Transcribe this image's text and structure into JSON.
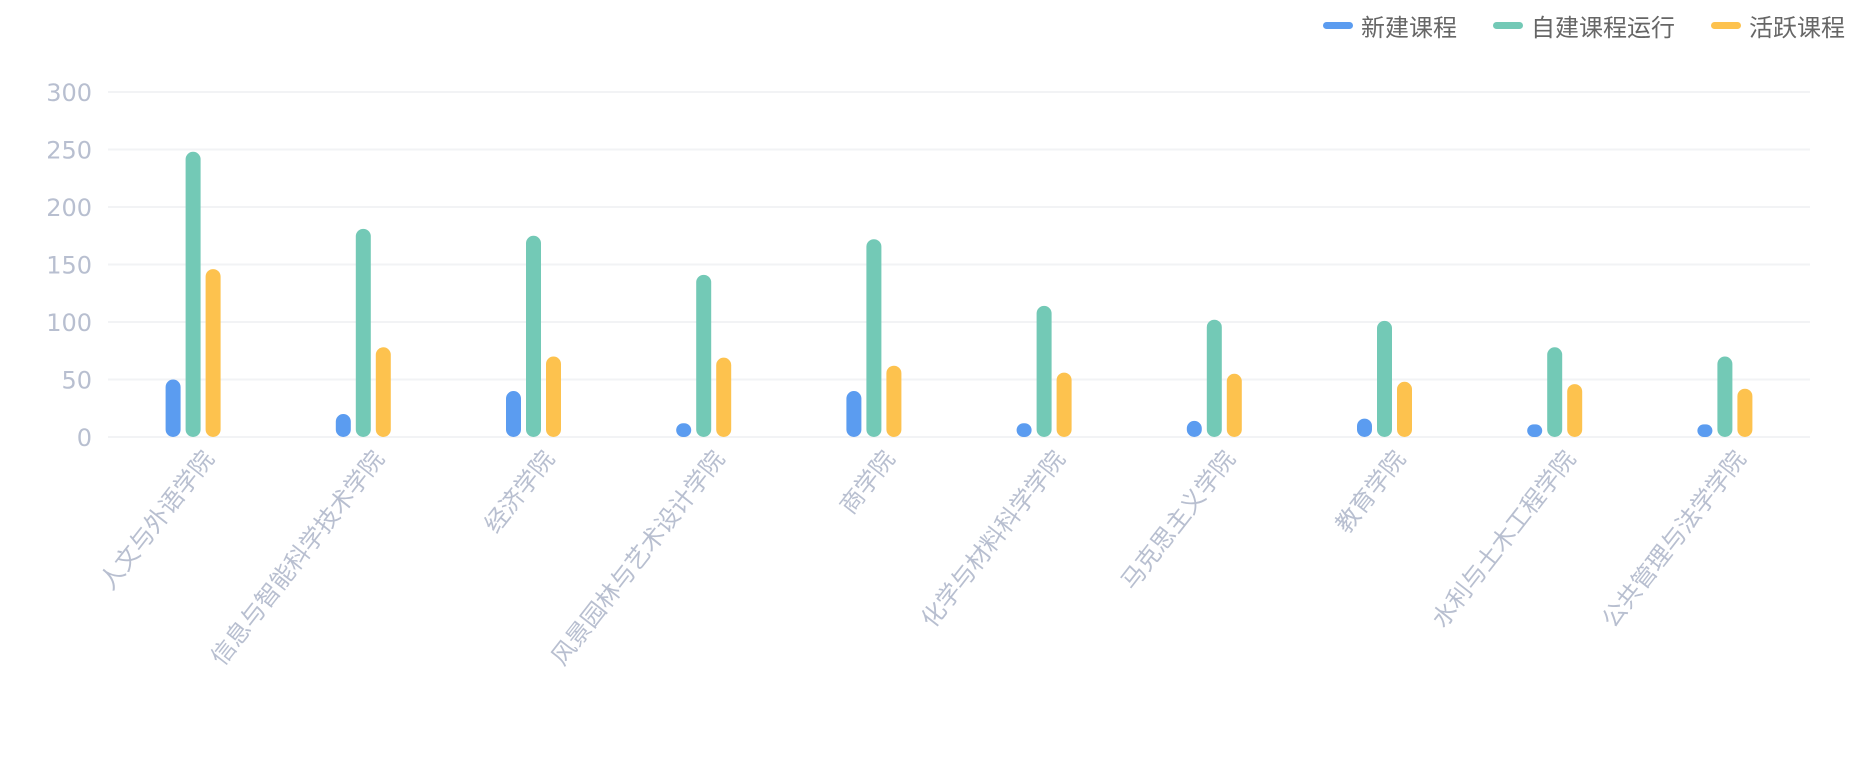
{
  "colors": {
    "grid": "#f2f3f5",
    "axis_text": "#b8bfd0",
    "legend_text": "#666666"
  },
  "chart_data": {
    "type": "bar",
    "categories": [
      "人文与外语学院",
      "信息与智能科学技术学院",
      "经济学院",
      "风景园林与艺术设计学院",
      "商学院",
      "化学与材料科学学院",
      "马克思主义学院",
      "教育学院",
      "水利与土木工程学院",
      "公共管理与法学学院"
    ],
    "series": [
      {
        "name": "新建课程",
        "color": "#5b9cf0",
        "values": [
          50,
          20,
          40,
          12,
          40,
          12,
          14,
          16,
          11,
          11
        ]
      },
      {
        "name": "自建课程运行",
        "color": "#73c9b6",
        "values": [
          248,
          181,
          175,
          141,
          172,
          114,
          102,
          101,
          78,
          70
        ]
      },
      {
        "name": "活跃课程",
        "color": "#fdc24e",
        "values": [
          146,
          78,
          70,
          69,
          62,
          56,
          55,
          48,
          46,
          42
        ]
      }
    ],
    "ylim": [
      0,
      300
    ],
    "yticks": [
      "0",
      "50",
      "100",
      "150",
      "200",
      "250",
      "300"
    ],
    "grid": true,
    "legend_position": "top-right"
  }
}
